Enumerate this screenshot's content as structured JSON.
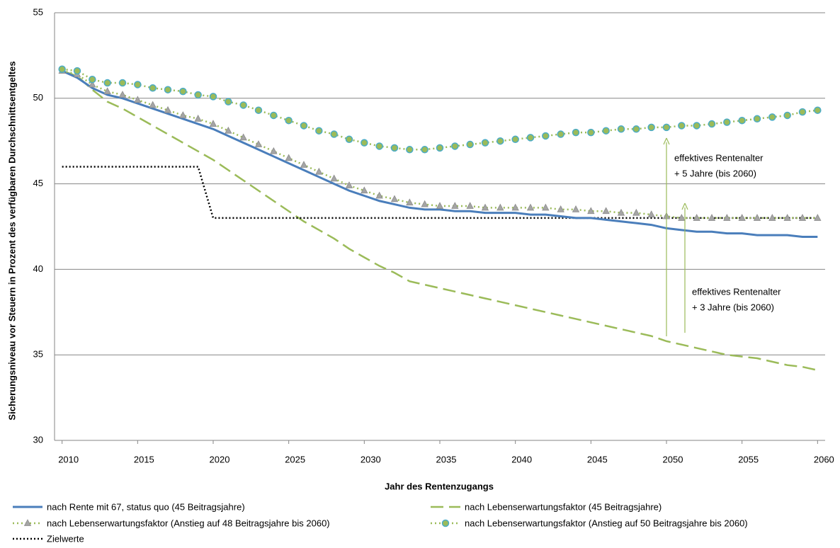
{
  "chart_data": {
    "type": "line",
    "ylabel": "Sicherungsniveau vor Steuern in Prozent des verfügbaren Durchschnittsentgeltes",
    "xlabel": "Jahr des Rentenzugangs",
    "x": [
      2010,
      2011,
      2012,
      2013,
      2014,
      2015,
      2016,
      2017,
      2018,
      2019,
      2020,
      2021,
      2022,
      2023,
      2024,
      2025,
      2026,
      2027,
      2028,
      2029,
      2030,
      2031,
      2032,
      2033,
      2034,
      2035,
      2036,
      2037,
      2038,
      2039,
      2040,
      2041,
      2042,
      2043,
      2044,
      2045,
      2046,
      2047,
      2048,
      2049,
      2050,
      2051,
      2052,
      2053,
      2054,
      2055,
      2056,
      2057,
      2058,
      2059,
      2060
    ],
    "xlim": [
      2009.5,
      2060.5
    ],
    "xticks": [
      2010,
      2015,
      2020,
      2025,
      2030,
      2035,
      2040,
      2045,
      2050,
      2055,
      2060
    ],
    "ylim": [
      30,
      55
    ],
    "yticks": [
      30,
      35,
      40,
      45,
      50,
      55
    ],
    "grid": true,
    "series": [
      {
        "name": "nach Rente mit 67,  status quo (45 Beitragsjahre)",
        "color": "#4a7ebb",
        "dash": "solid",
        "values": [
          51.6,
          51.2,
          50.6,
          50.2,
          50.0,
          49.7,
          49.4,
          49.1,
          48.8,
          48.5,
          48.2,
          47.8,
          47.4,
          47.0,
          46.6,
          46.2,
          45.8,
          45.4,
          45.0,
          44.6,
          44.3,
          44.0,
          43.8,
          43.6,
          43.5,
          43.5,
          43.4,
          43.4,
          43.3,
          43.3,
          43.3,
          43.2,
          43.2,
          43.1,
          43.0,
          43.0,
          42.9,
          42.8,
          42.7,
          42.6,
          42.4,
          42.3,
          42.2,
          42.2,
          42.1,
          42.1,
          42.0,
          42.0,
          42.0,
          41.9,
          41.9
        ]
      },
      {
        "name": "nach Lebenserwartungsfaktor (45 Beitragsjahre)",
        "color": "#9bbb59",
        "dash": "dashed",
        "values": [
          51.6,
          51.3,
          50.5,
          49.8,
          49.4,
          48.9,
          48.4,
          47.9,
          47.4,
          46.9,
          46.4,
          45.8,
          45.2,
          44.6,
          44.0,
          43.4,
          42.8,
          42.3,
          41.8,
          41.2,
          40.7,
          40.2,
          39.8,
          39.3,
          39.1,
          38.9,
          38.7,
          38.5,
          38.3,
          38.1,
          37.9,
          37.7,
          37.5,
          37.3,
          37.1,
          36.9,
          36.7,
          36.5,
          36.3,
          36.1,
          35.8,
          35.6,
          35.4,
          35.2,
          35.0,
          34.9,
          34.8,
          34.6,
          34.4,
          34.3,
          34.1
        ]
      },
      {
        "name": "nach Lebenserwartungsfaktor (Anstieg auf 48 Beitragsjahre bis 2060)",
        "color": "#9bbb59",
        "dash": "dotted",
        "marker": "triangle",
        "marker_color": "#a5a5a5",
        "values": [
          51.6,
          51.4,
          50.8,
          50.4,
          50.2,
          49.9,
          49.6,
          49.3,
          49.0,
          48.8,
          48.5,
          48.1,
          47.7,
          47.3,
          46.9,
          46.5,
          46.1,
          45.7,
          45.3,
          44.9,
          44.6,
          44.3,
          44.1,
          43.9,
          43.8,
          43.7,
          43.7,
          43.7,
          43.6,
          43.6,
          43.6,
          43.6,
          43.6,
          43.5,
          43.5,
          43.4,
          43.4,
          43.3,
          43.3,
          43.2,
          43.1,
          43.0,
          43.0,
          43.0,
          43.0,
          43.0,
          43.0,
          43.0,
          43.0,
          43.0,
          43.0
        ]
      },
      {
        "name": "nach Lebenserwartungsfaktor (Anstieg auf 50 Beitragsjahre bis 2060)",
        "color": "#9bbb59",
        "dash": "dotted",
        "marker": "circle",
        "marker_color": "#4bacc6",
        "values": [
          51.7,
          51.6,
          51.1,
          50.9,
          50.9,
          50.8,
          50.6,
          50.5,
          50.4,
          50.2,
          50.1,
          49.8,
          49.6,
          49.3,
          49.0,
          48.7,
          48.4,
          48.1,
          47.9,
          47.6,
          47.4,
          47.2,
          47.1,
          47.0,
          47.0,
          47.1,
          47.2,
          47.3,
          47.4,
          47.5,
          47.6,
          47.7,
          47.8,
          47.9,
          48.0,
          48.0,
          48.1,
          48.2,
          48.2,
          48.3,
          48.3,
          48.4,
          48.4,
          48.5,
          48.6,
          48.7,
          48.8,
          48.9,
          49.0,
          49.2,
          49.3
        ]
      },
      {
        "name": "Zielwerte",
        "color": "#000000",
        "dash": "dotted-fine",
        "values": [
          46,
          46,
          46,
          46,
          46,
          46,
          46,
          46,
          46,
          46,
          43,
          43,
          43,
          43,
          43,
          43,
          43,
          43,
          43,
          43,
          43,
          43,
          43,
          43,
          43,
          43,
          43,
          43,
          43,
          43,
          43,
          43,
          43,
          43,
          43,
          43,
          43,
          43,
          43,
          43,
          43,
          43,
          43,
          43,
          43,
          43,
          43,
          43,
          43,
          43,
          43
        ]
      }
    ],
    "annotations": [
      {
        "lines": [
          "effektives Rentenalter",
          "+ 5 Jahre (bis 2060)"
        ]
      },
      {
        "lines": [
          "effektives Rentenalter",
          "+ 3 Jahre (bis 2060)"
        ]
      }
    ]
  }
}
